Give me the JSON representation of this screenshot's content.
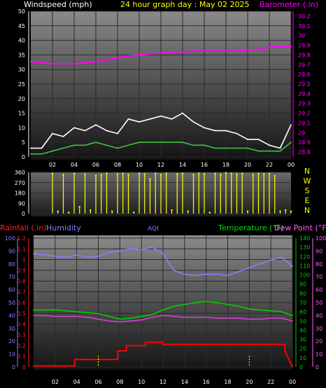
{
  "colors": {
    "windspeed": "#ffffff",
    "wind_avg": "#40c040",
    "barometer": "#ff00ff",
    "direction": "#ffff00",
    "rain": "#ff0000",
    "humidity": "#8080ff",
    "temperature": "#00d000",
    "dewpoint": "#d040d0",
    "title": "#ffff00",
    "aqi": "#8080ff"
  },
  "chart_data": [
    {
      "type": "line",
      "title": "24 hour graph day : May 02 2025",
      "left_label": "Windspeed (mph)",
      "right_label": "Barometer (.in)",
      "hour_ticks": [
        "02",
        "04",
        "06",
        "08",
        "10",
        "12",
        "14",
        "16",
        "18",
        "20",
        "22",
        "00"
      ],
      "left_ticks": [
        "0",
        "5",
        "10",
        "15",
        "20",
        "25",
        "30",
        "35",
        "40",
        "45",
        "50"
      ],
      "left_ylim": [
        0,
        50
      ],
      "right_ticks": [
        "28.8",
        "28.9",
        "29",
        "29.1",
        "29.2",
        "29.3",
        "29.4",
        "29.5",
        "29.6",
        "29.7",
        "29.8",
        "29.9",
        "30",
        "30.1",
        "30.2"
      ],
      "right_ylim": [
        28.75,
        30.25
      ],
      "grid": true,
      "series": [
        {
          "key": "barometer",
          "axis": "right",
          "x": [
            0,
            1,
            2,
            3,
            4,
            5,
            6,
            7,
            8,
            9,
            10,
            11,
            12,
            13,
            14,
            15,
            16,
            17,
            18,
            19,
            20,
            21,
            22,
            23,
            24
          ],
          "values": [
            29.73,
            29.72,
            29.71,
            29.71,
            29.71,
            29.72,
            29.73,
            29.75,
            29.77,
            29.79,
            29.8,
            29.81,
            29.82,
            29.83,
            29.83,
            29.84,
            29.84,
            29.84,
            29.84,
            29.84,
            29.85,
            29.86,
            29.88,
            29.89,
            29.89
          ]
        },
        {
          "key": "gust",
          "axis": "left",
          "x": [
            0,
            1,
            2,
            3,
            4,
            5,
            6,
            7,
            8,
            9,
            10,
            11,
            12,
            13,
            14,
            15,
            16,
            17,
            18,
            19,
            20,
            21,
            22,
            23,
            24
          ],
          "values": [
            3,
            3,
            8,
            7,
            10,
            9,
            11,
            9,
            8,
            13,
            12,
            13,
            14,
            13,
            15,
            12,
            10,
            9,
            9,
            8,
            6,
            6,
            4,
            3,
            11
          ]
        },
        {
          "key": "wind_avg",
          "axis": "left",
          "x": [
            0,
            1,
            2,
            3,
            4,
            5,
            6,
            7,
            8,
            9,
            10,
            11,
            12,
            13,
            14,
            15,
            16,
            17,
            18,
            19,
            20,
            21,
            22,
            23,
            24
          ],
          "values": [
            1,
            1,
            2,
            3,
            4,
            4,
            5,
            4,
            3,
            4,
            5,
            5,
            5,
            5,
            5,
            4,
            4,
            3,
            3,
            3,
            3,
            2,
            2,
            2,
            5
          ]
        }
      ]
    },
    {
      "type": "scatter",
      "left_ticks": [
        "0",
        "90",
        "180",
        "270",
        "360"
      ],
      "ylim": [
        0,
        360
      ],
      "compass": [
        "N",
        "W",
        "S",
        "E",
        "N"
      ],
      "series": [
        {
          "key": "direction",
          "x": [
            0,
            0.5,
            1,
            1.5,
            2,
            2.5,
            3,
            3.5,
            4,
            4.5,
            5,
            5.5,
            6,
            6.5,
            7,
            7.5,
            8,
            8.5,
            9,
            9.5,
            10,
            10.5,
            11,
            11.5,
            12,
            12.5,
            13,
            13.5,
            14,
            14.5,
            15,
            15.5,
            16,
            16.5,
            17,
            17.5,
            18,
            18.5,
            19,
            19.5,
            20,
            20.5,
            21,
            21.5,
            22,
            22.5,
            23,
            23.5,
            24
          ],
          "values": [
            null,
            null,
            null,
            null,
            350,
            20,
            340,
            10,
            350,
            60,
            345,
            30,
            330,
            340,
            350,
            20,
            345,
            350,
            340,
            10,
            350,
            345,
            300,
            350,
            340,
            350,
            30,
            345,
            350,
            20,
            340,
            350,
            345,
            10,
            350,
            340,
            355,
            350,
            345,
            350,
            20,
            340,
            350,
            345,
            350,
            330,
            20,
            30,
            20
          ]
        }
      ]
    },
    {
      "type": "line",
      "left_label": "Rainfall (.in)",
      "humidity_label": "Humidity",
      "center_label": "AQI",
      "right_label": "Temperature (°F)",
      "right2_label": "Dew Point (°F)",
      "hour_ticks": [
        "02",
        "04",
        "06",
        "08",
        "10",
        "12",
        "14",
        "16",
        "18",
        "20",
        "22",
        "00"
      ],
      "rain_ticks": [
        "0",
        "0.1",
        "0.2",
        "0.3",
        "0.4",
        "0.5",
        "0.6",
        "0.7",
        "0.8",
        "0.9",
        "1",
        "1.1",
        "1.2"
      ],
      "rain_ylim": [
        0,
        1.2
      ],
      "humidity_ticks": [
        "0",
        "10",
        "20",
        "30",
        "40",
        "50",
        "60",
        "70",
        "80",
        "90",
        "100"
      ],
      "humidity_ylim": [
        0,
        100
      ],
      "temp_ticks": [
        "0",
        "10",
        "20",
        "30",
        "40",
        "50",
        "60",
        "70",
        "80",
        "90",
        "100",
        "110",
        "120",
        "130",
        "140"
      ],
      "temp_ylim": [
        0,
        140
      ],
      "dew_ticks": [
        "0",
        "10",
        "20",
        "30",
        "40",
        "50",
        "60",
        "70",
        "80",
        "90",
        "100"
      ],
      "dew_ylim": [
        0,
        100
      ],
      "grid": true,
      "series": [
        {
          "key": "humidity",
          "axis": "humidity",
          "x": [
            0,
            1,
            2,
            3,
            4,
            5,
            6,
            7,
            8,
            9,
            10,
            11,
            12,
            13,
            14,
            15,
            16,
            17,
            18,
            19,
            20,
            21,
            22,
            23,
            24
          ],
          "values": [
            88,
            87,
            86,
            85,
            87,
            85,
            86,
            89,
            90,
            92,
            91,
            93,
            88,
            75,
            72,
            71,
            72,
            72,
            71,
            74,
            77,
            80,
            83,
            85,
            78
          ]
        },
        {
          "key": "temperature",
          "axis": "temp",
          "x": [
            0,
            1,
            2,
            3,
            4,
            5,
            6,
            7,
            8,
            9,
            10,
            11,
            12,
            13,
            14,
            15,
            16,
            17,
            18,
            19,
            20,
            21,
            22,
            23,
            24
          ],
          "values": [
            62,
            62,
            62,
            61,
            60,
            59,
            58,
            55,
            52,
            53,
            55,
            57,
            62,
            66,
            68,
            70,
            71,
            70,
            68,
            66,
            63,
            62,
            61,
            60,
            56
          ]
        },
        {
          "key": "dewpoint",
          "axis": "temp",
          "x": [
            0,
            1,
            2,
            3,
            4,
            5,
            6,
            7,
            8,
            9,
            10,
            11,
            12,
            13,
            14,
            15,
            16,
            17,
            18,
            19,
            20,
            21,
            22,
            23,
            24
          ],
          "values": [
            56,
            56,
            55,
            55,
            55,
            54,
            52,
            50,
            49,
            50,
            51,
            54,
            56,
            55,
            54,
            54,
            54,
            53,
            53,
            53,
            52,
            52,
            53,
            53,
            50
          ]
        },
        {
          "key": "rain",
          "axis": "rain",
          "x": [
            0,
            3.8,
            3.8,
            7.8,
            7.8,
            8.6,
            8.6,
            10.4,
            10.4,
            12,
            12,
            23.3,
            23.3,
            24
          ],
          "values": [
            0.01,
            0.01,
            0.07,
            0.07,
            0.15,
            0.15,
            0.2,
            0.2,
            0.23,
            0.23,
            0.21,
            0.21,
            0.15,
            0
          ]
        }
      ]
    }
  ]
}
